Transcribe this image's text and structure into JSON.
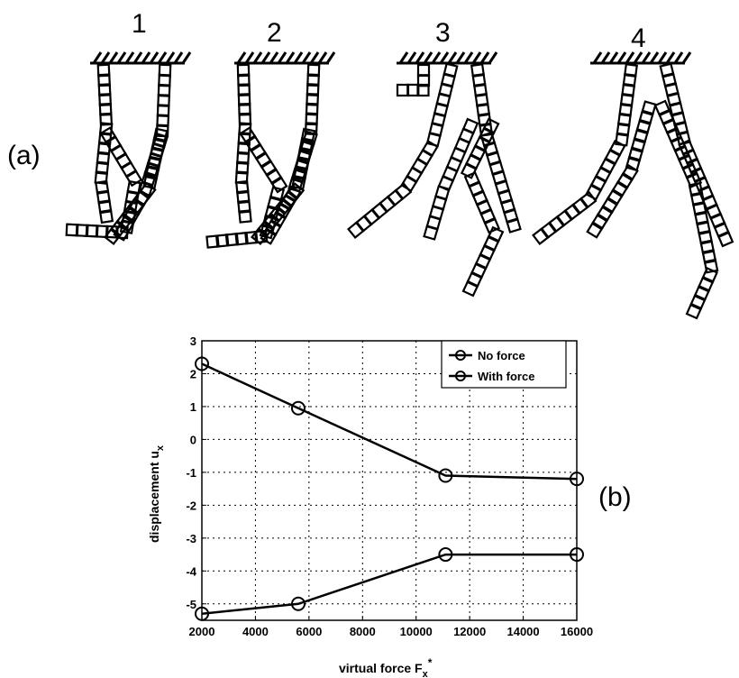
{
  "panel_a": {
    "label": "(a)",
    "frames": [
      "1",
      "2",
      "3",
      "4"
    ]
  },
  "chart_data": {
    "type": "line",
    "panel_label": "(b)",
    "xlabel": "virtual force F",
    "xlabel_sub": "x",
    "xlabel_sup": "*",
    "ylabel": "displacement u",
    "ylabel_sub": "x",
    "xlim": [
      2000,
      16000
    ],
    "ylim": [
      -5.5,
      3
    ],
    "xticks": [
      2000,
      4000,
      6000,
      8000,
      10000,
      12000,
      14000,
      16000
    ],
    "yticks": [
      -5,
      -4,
      -3,
      -2,
      -1,
      0,
      1,
      2,
      3
    ],
    "grid": true,
    "legend_position": "top-right",
    "series": [
      {
        "name": "No force",
        "x": [
          2000,
          5600,
          11100,
          16000
        ],
        "y": [
          2.3,
          0.95,
          -1.1,
          -1.2
        ]
      },
      {
        "name": "With force",
        "x": [
          2000,
          5600,
          11100,
          16000
        ],
        "y": [
          -5.3,
          -5.0,
          -3.5,
          -3.5
        ]
      }
    ]
  }
}
